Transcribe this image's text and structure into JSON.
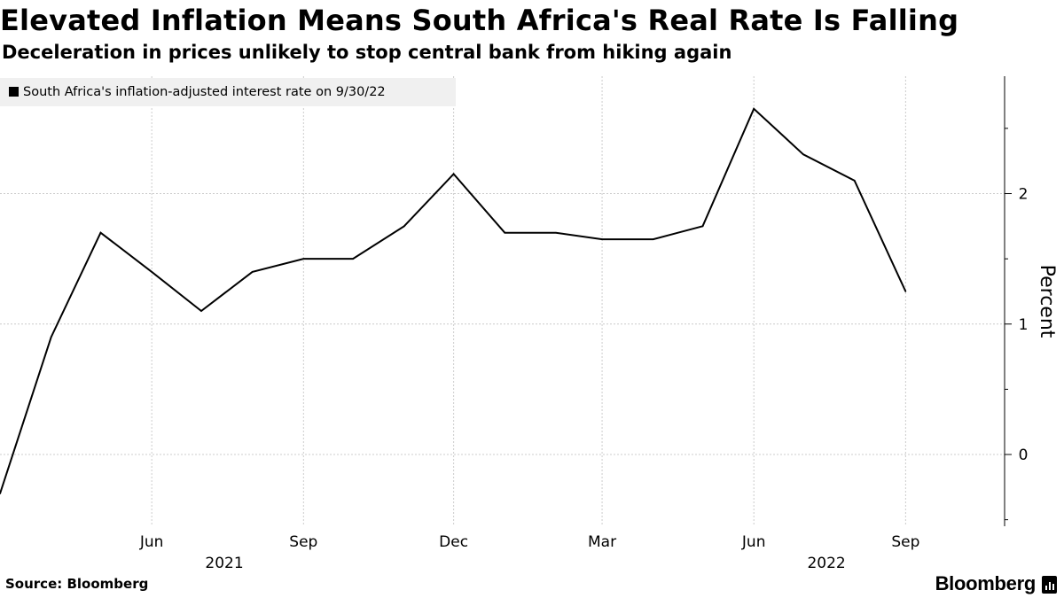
{
  "title": "Elevated Inflation Means South Africa's Real Rate Is Falling",
  "subtitle": "Deceleration in prices unlikely to stop central bank from hiking again",
  "source": "Source: Bloomberg",
  "brand": "Bloomberg",
  "chart_data": {
    "type": "line",
    "legend": "South Africa's inflation-adjusted interest rate on 9/30/22",
    "legend_position": "top-left",
    "ylabel": "Percent",
    "ylim": [
      -0.55,
      2.9
    ],
    "yticks": [
      0,
      1,
      2
    ],
    "y_minor_ticks": [
      -0.5,
      0.5,
      1.5,
      2.5
    ],
    "xlim": [
      "2021-03-01",
      "2022-10-31"
    ],
    "x_month_ticks": [
      {
        "date": "2021-06-01",
        "label": "Jun"
      },
      {
        "date": "2021-09-01",
        "label": "Sep"
      },
      {
        "date": "2021-12-01",
        "label": "Dec"
      },
      {
        "date": "2022-03-01",
        "label": "Mar"
      },
      {
        "date": "2022-06-01",
        "label": "Jun"
      },
      {
        "date": "2022-09-01",
        "label": "Sep"
      }
    ],
    "x_year_labels": [
      {
        "date": "2021-07-15",
        "label": "2021"
      },
      {
        "date": "2022-07-15",
        "label": "2022"
      }
    ],
    "grid": true,
    "colors": {
      "line": "#000000",
      "grid": "#cccccc",
      "legend_bg": "#f0f0f0"
    },
    "series": [
      {
        "x": [
          "2021-03-01",
          "2021-04-01",
          "2021-05-01",
          "2021-06-01",
          "2021-07-01",
          "2021-08-01",
          "2021-09-01",
          "2021-10-01",
          "2021-11-01",
          "2021-12-01",
          "2022-01-01",
          "2022-02-01",
          "2022-03-01",
          "2022-04-01",
          "2022-05-01",
          "2022-06-01",
          "2022-07-01",
          "2022-08-01",
          "2022-09-01"
        ],
        "values": [
          -0.3,
          0.9,
          1.7,
          1.4,
          1.1,
          1.4,
          1.5,
          1.5,
          1.75,
          2.15,
          1.7,
          1.7,
          1.65,
          1.65,
          1.75,
          2.65,
          2.3,
          2.1,
          1.25
        ]
      }
    ]
  }
}
